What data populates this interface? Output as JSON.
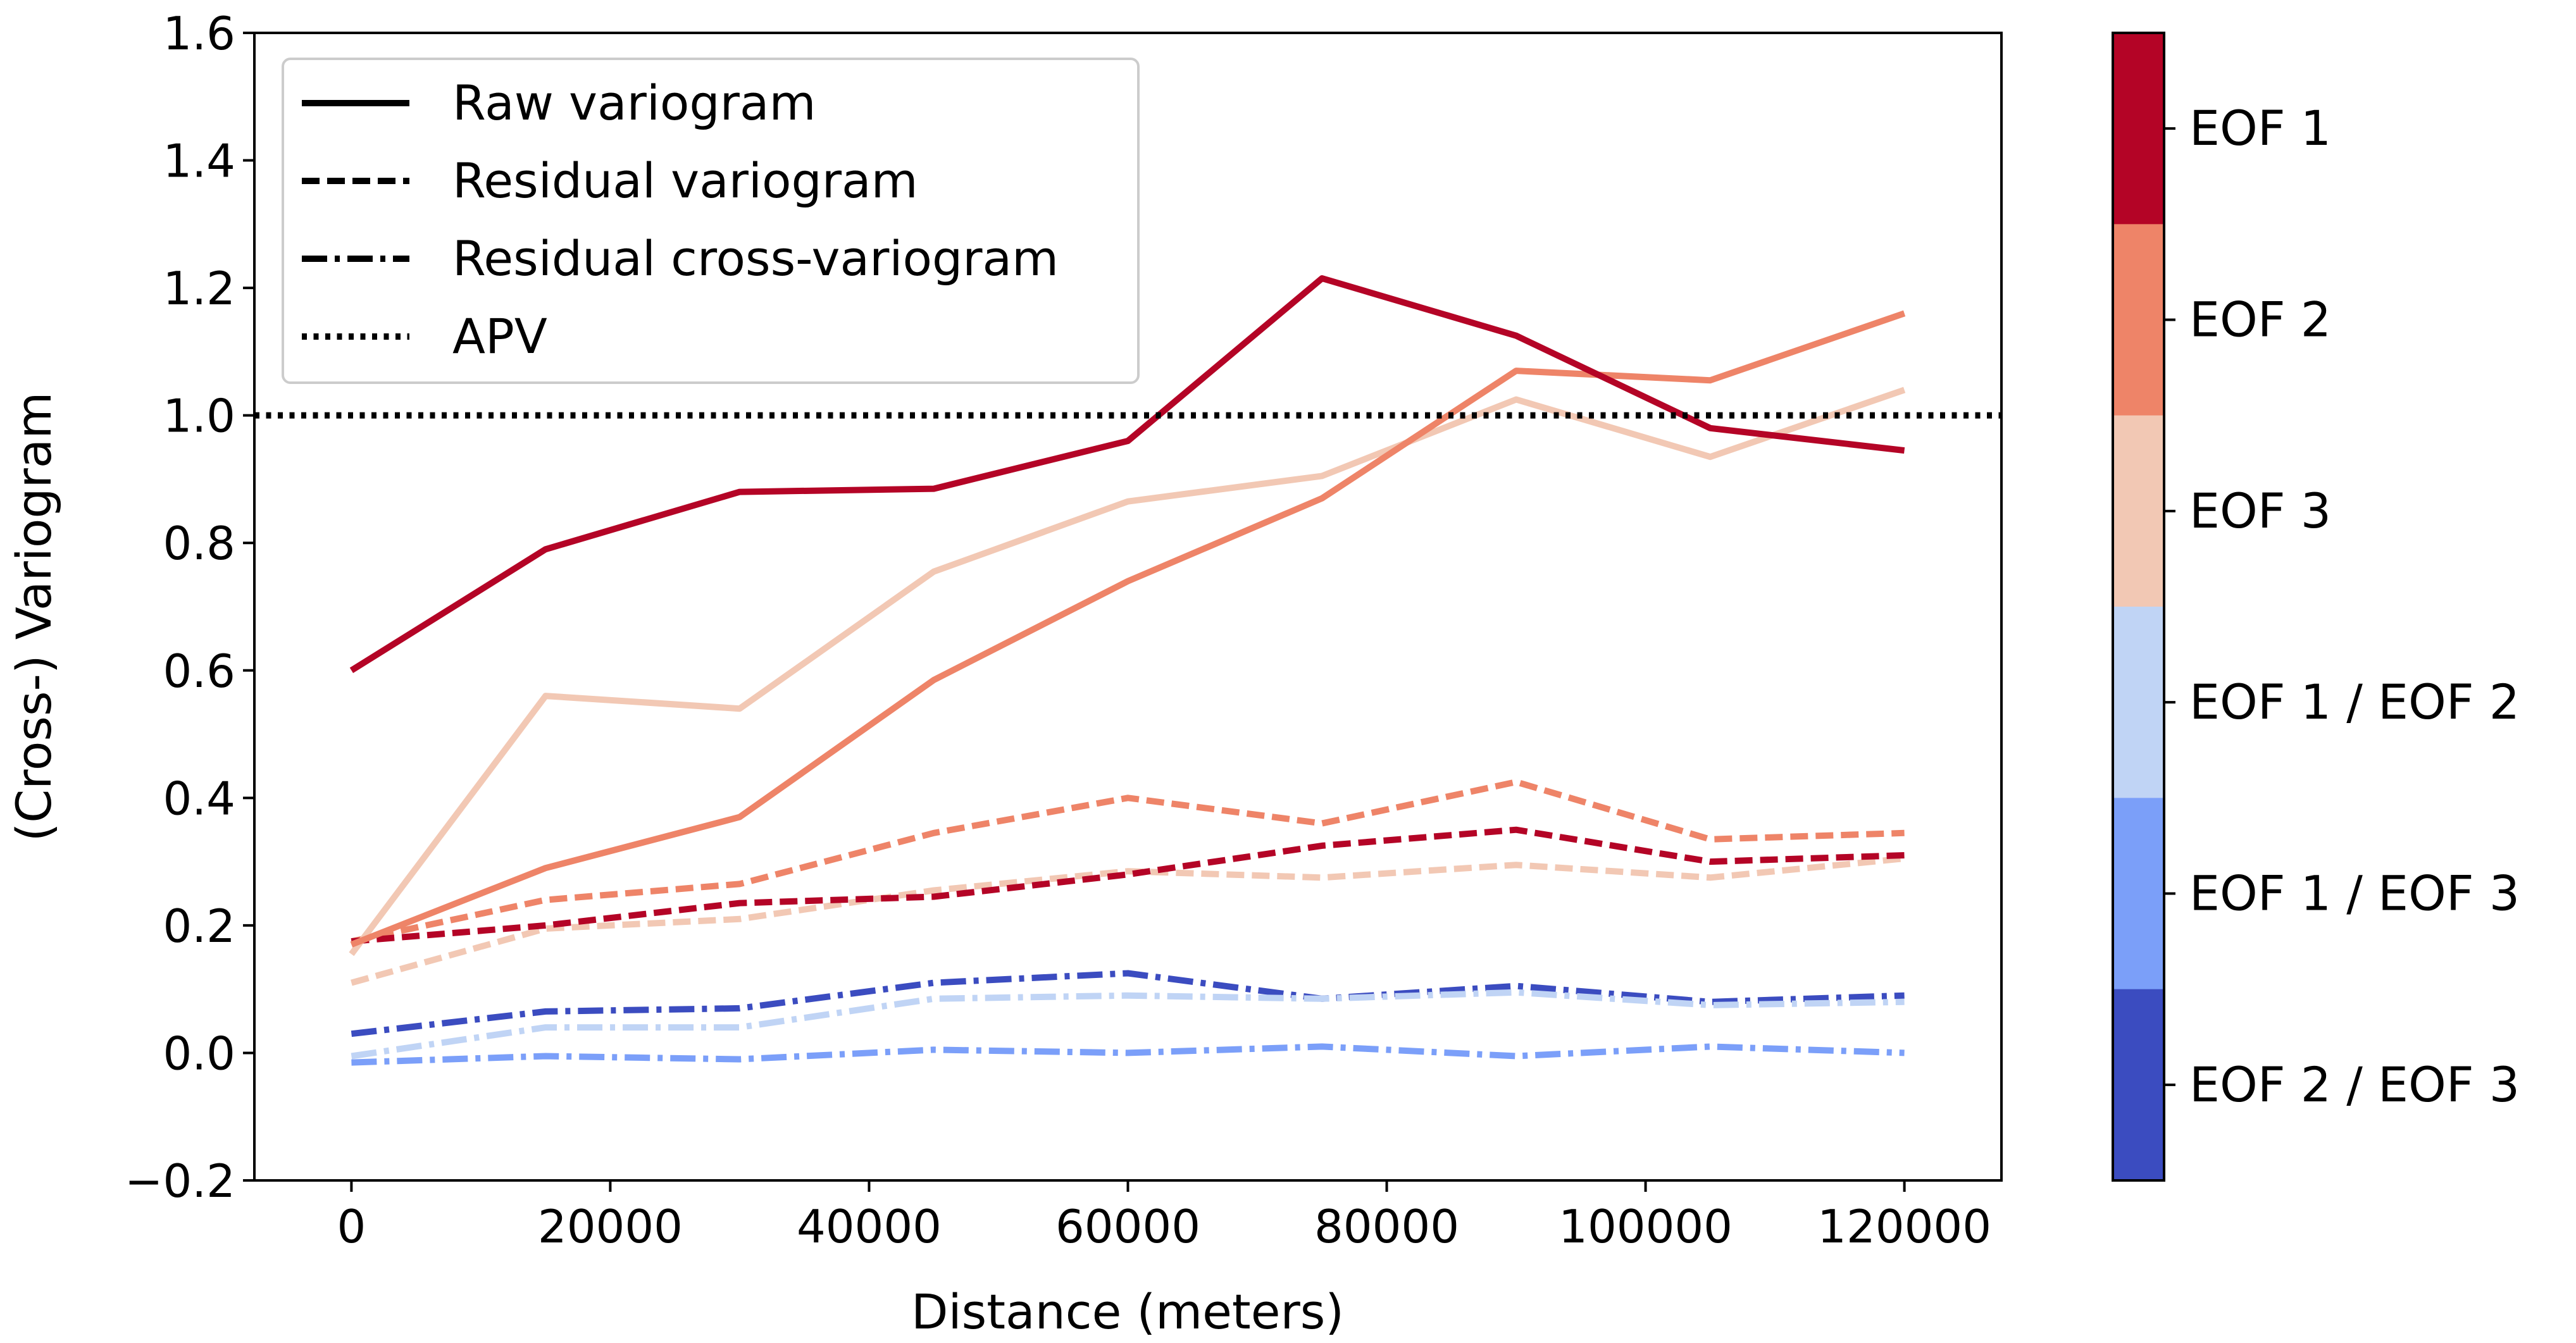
{
  "chart_data": {
    "type": "line",
    "title": "",
    "xlabel": "Distance (meters)",
    "ylabel": "(Cross-) Variogram",
    "xlim": [
      -7500,
      127500
    ],
    "ylim": [
      -0.2,
      1.6
    ],
    "xticks": [
      0,
      20000,
      40000,
      60000,
      80000,
      100000,
      120000
    ],
    "xtick_labels": [
      "0",
      "20000",
      "40000",
      "60000",
      "80000",
      "100000",
      "120000"
    ],
    "yticks": [
      -0.2,
      0.0,
      0.2,
      0.4,
      0.6,
      0.8,
      1.0,
      1.2,
      1.4,
      1.6
    ],
    "ytick_labels": [
      "−0.2",
      "0.0",
      "0.2",
      "0.4",
      "0.6",
      "0.8",
      "1.0",
      "1.2",
      "1.4",
      "1.6"
    ],
    "grid": false,
    "x": [
      0,
      15000,
      30000,
      45000,
      60000,
      75000,
      90000,
      105000,
      120000
    ],
    "reference_line": {
      "y": 1.0,
      "style": "dotted",
      "color": "#000000"
    },
    "legend": {
      "placement": "upper-left",
      "entries": [
        {
          "label": "Raw variogram",
          "style": "solid"
        },
        {
          "label": "Residual variogram",
          "style": "dashed"
        },
        {
          "label": "Residual cross-variogram",
          "style": "dashdot"
        },
        {
          "label": "APV",
          "style": "dotted"
        }
      ]
    },
    "colorbar": {
      "placement": "right",
      "categories": [
        "EOF 1",
        "EOF 2",
        "EOF 3",
        "EOF 1 / EOF 2",
        "EOF 1 / EOF 3",
        "EOF 2 / EOF 3"
      ],
      "colors": [
        "#b40426",
        "#ee8468",
        "#f2c8b4",
        "#c0d4f5",
        "#7b9ff9",
        "#3b4cc0"
      ]
    },
    "series": [
      {
        "group": "EOF 1",
        "style": "solid",
        "color": "#b40426",
        "values": [
          0.6,
          0.79,
          0.88,
          0.885,
          0.96,
          1.215,
          1.125,
          0.98,
          0.945
        ]
      },
      {
        "group": "EOF 2",
        "style": "solid",
        "color": "#ee8468",
        "values": [
          0.17,
          0.29,
          0.37,
          0.585,
          0.74,
          0.87,
          1.07,
          1.055,
          1.16
        ]
      },
      {
        "group": "EOF 3",
        "style": "solid",
        "color": "#f2c8b4",
        "values": [
          0.155,
          0.56,
          0.54,
          0.755,
          0.865,
          0.905,
          1.025,
          0.935,
          1.04
        ]
      },
      {
        "group": "EOF 1",
        "style": "dashed",
        "color": "#b40426",
        "values": [
          0.175,
          0.2,
          0.235,
          0.245,
          0.28,
          0.325,
          0.35,
          0.3,
          0.31
        ]
      },
      {
        "group": "EOF 2",
        "style": "dashed",
        "color": "#ee8468",
        "values": [
          0.175,
          0.24,
          0.265,
          0.345,
          0.4,
          0.36,
          0.425,
          0.335,
          0.345
        ]
      },
      {
        "group": "EOF 3",
        "style": "dashed",
        "color": "#f2c8b4",
        "values": [
          0.11,
          0.195,
          0.21,
          0.255,
          0.285,
          0.275,
          0.295,
          0.275,
          0.305
        ]
      },
      {
        "group": "EOF 1 / EOF 2",
        "style": "dashdot",
        "color": "#c0d4f5",
        "values": [
          -0.005,
          0.04,
          0.04,
          0.085,
          0.09,
          0.085,
          0.095,
          0.075,
          0.08
        ]
      },
      {
        "group": "EOF 1 / EOF 3",
        "style": "dashdot",
        "color": "#7b9ff9",
        "values": [
          -0.015,
          -0.005,
          -0.01,
          0.005,
          0.0,
          0.01,
          -0.005,
          0.01,
          0.0
        ]
      },
      {
        "group": "EOF 2 / EOF 3",
        "style": "dashdot",
        "color": "#3b4cc0",
        "values": [
          0.03,
          0.065,
          0.07,
          0.11,
          0.125,
          0.085,
          0.105,
          0.08,
          0.09
        ]
      }
    ]
  }
}
